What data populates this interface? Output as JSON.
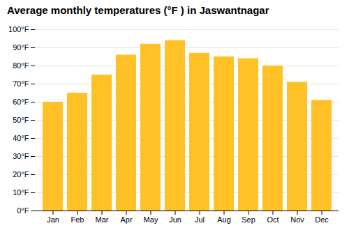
{
  "chart_data": {
    "type": "bar",
    "title": "Average monthly temperatures (°F ) in Jaswantnagar",
    "categories": [
      "Jan",
      "Feb",
      "Mar",
      "Apr",
      "May",
      "Jun",
      "Jul",
      "Aug",
      "Sep",
      "Oct",
      "Nov",
      "Dec"
    ],
    "values": [
      60,
      65,
      75,
      86,
      92,
      94,
      87,
      85,
      84,
      80,
      71,
      61
    ],
    "color": "#FFC125",
    "ylim": [
      0,
      100
    ],
    "yticks": [
      {
        "value": 0,
        "label": "0°F"
      },
      {
        "value": 10,
        "label": "10°F"
      },
      {
        "value": 20,
        "label": "20°F"
      },
      {
        "value": 30,
        "label": "30°F"
      },
      {
        "value": 40,
        "label": "40°F"
      },
      {
        "value": 50,
        "label": "50°F"
      },
      {
        "value": 60,
        "label": "60°F"
      },
      {
        "value": 70,
        "label": "70°F"
      },
      {
        "value": 80,
        "label": "80°F"
      },
      {
        "value": 90,
        "label": "90°F"
      },
      {
        "value": 100,
        "label": "100°F"
      }
    ],
    "grid": true
  }
}
